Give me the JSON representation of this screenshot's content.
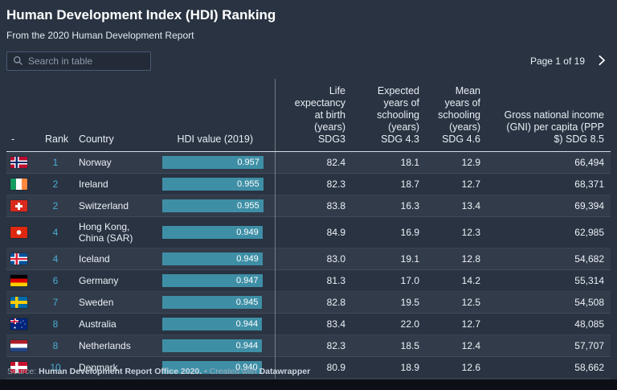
{
  "colors": {
    "background": "#293342",
    "bar_fill": "#3e8fa6",
    "rank_text": "#4badd3",
    "divider": "#aab4c0",
    "bottom_bar": "#0c1016"
  },
  "icons": {
    "search_icon": "magnifier",
    "next_page_icon": "chevron-right"
  },
  "search": {
    "placeholder": "Search in table"
  },
  "pagination": {
    "label": "Page 1 of 19"
  },
  "footer": {
    "source_label": "Source:",
    "source": "Human Development Report Office 2020.",
    "bullet": "•",
    "created_with": "Created with",
    "brand": "Datawrapper"
  },
  "chart_data": {
    "type": "table",
    "title": "Human Development Index (HDI) Ranking",
    "subtitle": "From the 2020 Human Development Report",
    "bar_column": "HDI value (2019)",
    "bar_range": [
      0,
      1
    ],
    "columns": [
      "-",
      "Rank",
      "Country",
      "HDI value (2019)",
      "Life\nexpectancy\nat birth\n(years)\nSDG3",
      "Expected\nyears of\nschooling\n(years)\nSDG 4.3",
      "Mean\nyears of\nschooling\n(years)\nSDG 4.6",
      "Gross national income\n(GNI) per capita (PPP\n$) SDG 8.5"
    ],
    "rows": [
      {
        "flag": "norway",
        "rank": "1",
        "country": "Norway",
        "hdi": "0.957",
        "bar_width": 95.7,
        "life_expectancy": "82.4",
        "expected_schooling": "18.1",
        "mean_schooling": "12.9",
        "gni": "66,494"
      },
      {
        "flag": "ireland",
        "rank": "2",
        "country": "Ireland",
        "hdi": "0.955",
        "bar_width": 95.5,
        "life_expectancy": "82.3",
        "expected_schooling": "18.7",
        "mean_schooling": "12.7",
        "gni": "68,371"
      },
      {
        "flag": "switzerland",
        "rank": "2",
        "country": "Switzerland",
        "hdi": "0.955",
        "bar_width": 95.5,
        "life_expectancy": "83.8",
        "expected_schooling": "16.3",
        "mean_schooling": "13.4",
        "gni": "69,394"
      },
      {
        "flag": "hongkong",
        "rank": "4",
        "country": "Hong Kong, China (SAR)",
        "hdi": "0.949",
        "bar_width": 94.9,
        "life_expectancy": "84.9",
        "expected_schooling": "16.9",
        "mean_schooling": "12.3",
        "gni": "62,985"
      },
      {
        "flag": "iceland",
        "rank": "4",
        "country": "Iceland",
        "hdi": "0.949",
        "bar_width": 94.9,
        "life_expectancy": "83.0",
        "expected_schooling": "19.1",
        "mean_schooling": "12.8",
        "gni": "54,682"
      },
      {
        "flag": "germany",
        "rank": "6",
        "country": "Germany",
        "hdi": "0.947",
        "bar_width": 94.7,
        "life_expectancy": "81.3",
        "expected_schooling": "17.0",
        "mean_schooling": "14.2",
        "gni": "55,314"
      },
      {
        "flag": "sweden",
        "rank": "7",
        "country": "Sweden",
        "hdi": "0.945",
        "bar_width": 94.5,
        "life_expectancy": "82.8",
        "expected_schooling": "19.5",
        "mean_schooling": "12.5",
        "gni": "54,508"
      },
      {
        "flag": "australia",
        "rank": "8",
        "country": "Australia",
        "hdi": "0.944",
        "bar_width": 94.4,
        "life_expectancy": "83.4",
        "expected_schooling": "22.0",
        "mean_schooling": "12.7",
        "gni": "48,085"
      },
      {
        "flag": "netherlands",
        "rank": "8",
        "country": "Netherlands",
        "hdi": "0.944",
        "bar_width": 94.4,
        "life_expectancy": "82.3",
        "expected_schooling": "18.5",
        "mean_schooling": "12.4",
        "gni": "57,707"
      },
      {
        "flag": "denmark",
        "rank": "10",
        "country": "Denmark",
        "hdi": "0.940",
        "bar_width": 94.0,
        "life_expectancy": "80.9",
        "expected_schooling": "18.9",
        "mean_schooling": "12.6",
        "gni": "58,662"
      }
    ]
  }
}
